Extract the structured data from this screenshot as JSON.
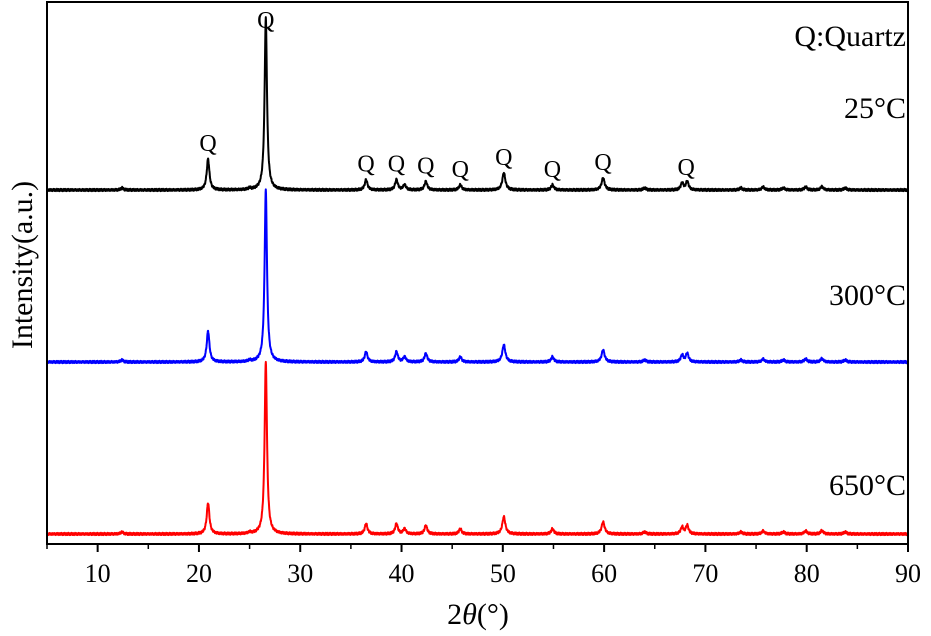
{
  "chart_data": {
    "type": "line",
    "xlabel_prefix": "2",
    "xlabel_var": "θ",
    "xlabel_unit": "(°)",
    "ylabel": "Intensity(a.u.)",
    "xlim": [
      5,
      90
    ],
    "xticks": [
      10,
      20,
      30,
      40,
      50,
      60,
      70,
      80,
      90
    ],
    "legend_note": "Q:Quartz",
    "peak_marker": "Q",
    "quartz_peaks": [
      20.9,
      26.6,
      36.5,
      39.5,
      42.4,
      45.8,
      50.1,
      54.9,
      59.9,
      68.1
    ],
    "peak_intensities": [
      {
        "x": 12.4,
        "h": 0.012,
        "w": 0.15
      },
      {
        "x": 20.9,
        "h": 0.18,
        "w": 0.16
      },
      {
        "x": 25.0,
        "h": 0.008,
        "w": 0.15
      },
      {
        "x": 26.6,
        "h": 1.0,
        "w": 0.14
      },
      {
        "x": 36.5,
        "h": 0.06,
        "w": 0.16
      },
      {
        "x": 39.5,
        "h": 0.06,
        "w": 0.16
      },
      {
        "x": 40.3,
        "h": 0.03,
        "w": 0.16
      },
      {
        "x": 42.4,
        "h": 0.05,
        "w": 0.16
      },
      {
        "x": 45.8,
        "h": 0.03,
        "w": 0.16
      },
      {
        "x": 50.1,
        "h": 0.1,
        "w": 0.18
      },
      {
        "x": 54.9,
        "h": 0.03,
        "w": 0.16
      },
      {
        "x": 59.9,
        "h": 0.07,
        "w": 0.18
      },
      {
        "x": 64.0,
        "h": 0.012,
        "w": 0.16
      },
      {
        "x": 67.7,
        "h": 0.04,
        "w": 0.16
      },
      {
        "x": 68.2,
        "h": 0.05,
        "w": 0.16
      },
      {
        "x": 73.5,
        "h": 0.012,
        "w": 0.16
      },
      {
        "x": 75.7,
        "h": 0.018,
        "w": 0.16
      },
      {
        "x": 77.7,
        "h": 0.012,
        "w": 0.16
      },
      {
        "x": 79.9,
        "h": 0.018,
        "w": 0.16
      },
      {
        "x": 81.5,
        "h": 0.02,
        "w": 0.16
      },
      {
        "x": 83.8,
        "h": 0.012,
        "w": 0.16
      }
    ],
    "series": [
      {
        "name": "25°C",
        "color": "#000000"
      },
      {
        "name": "300°C",
        "color": "#0000ff"
      },
      {
        "name": "650°C",
        "color": "#ff0000"
      }
    ]
  }
}
